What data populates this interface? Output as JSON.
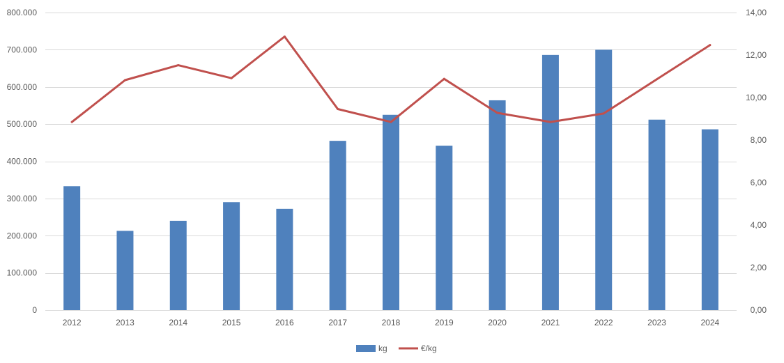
{
  "chart_data": {
    "type": "bar+line",
    "categories": [
      "2012",
      "2013",
      "2014",
      "2015",
      "2016",
      "2017",
      "2018",
      "2019",
      "2020",
      "2021",
      "2022",
      "2023",
      "2024"
    ],
    "series": [
      {
        "name": "kg",
        "type": "bar",
        "axis": "left",
        "color": "#4F81BD",
        "values": [
          333000,
          213000,
          240000,
          290000,
          272000,
          455000,
          525000,
          442000,
          564000,
          686000,
          700000,
          512000,
          486000
        ]
      },
      {
        "name": "€/kg",
        "type": "line",
        "axis": "right",
        "color": "#C0504D",
        "values": [
          8.85,
          10.82,
          11.52,
          10.91,
          12.87,
          9.46,
          8.85,
          10.88,
          9.28,
          8.85,
          9.25,
          10.86,
          12.47
        ]
      }
    ],
    "y_left": {
      "min": 0,
      "max": 800000,
      "ticks": [
        0,
        100000,
        200000,
        300000,
        400000,
        500000,
        600000,
        700000,
        800000
      ],
      "tick_labels": [
        "0",
        "100.000",
        "200.000",
        "300.000",
        "400.000",
        "500.000",
        "600.000",
        "700.000",
        "800.000"
      ]
    },
    "y_right": {
      "min": 0,
      "max": 14,
      "ticks": [
        0,
        2,
        4,
        6,
        8,
        10,
        12,
        14
      ],
      "tick_labels": [
        "0,00",
        "2,00",
        "4,00",
        "6,00",
        "8,00",
        "10,00",
        "12,00",
        "14,00"
      ]
    },
    "grid": true,
    "legend_position": "bottom-center",
    "title": "",
    "xlabel": "",
    "ylabel": ""
  }
}
